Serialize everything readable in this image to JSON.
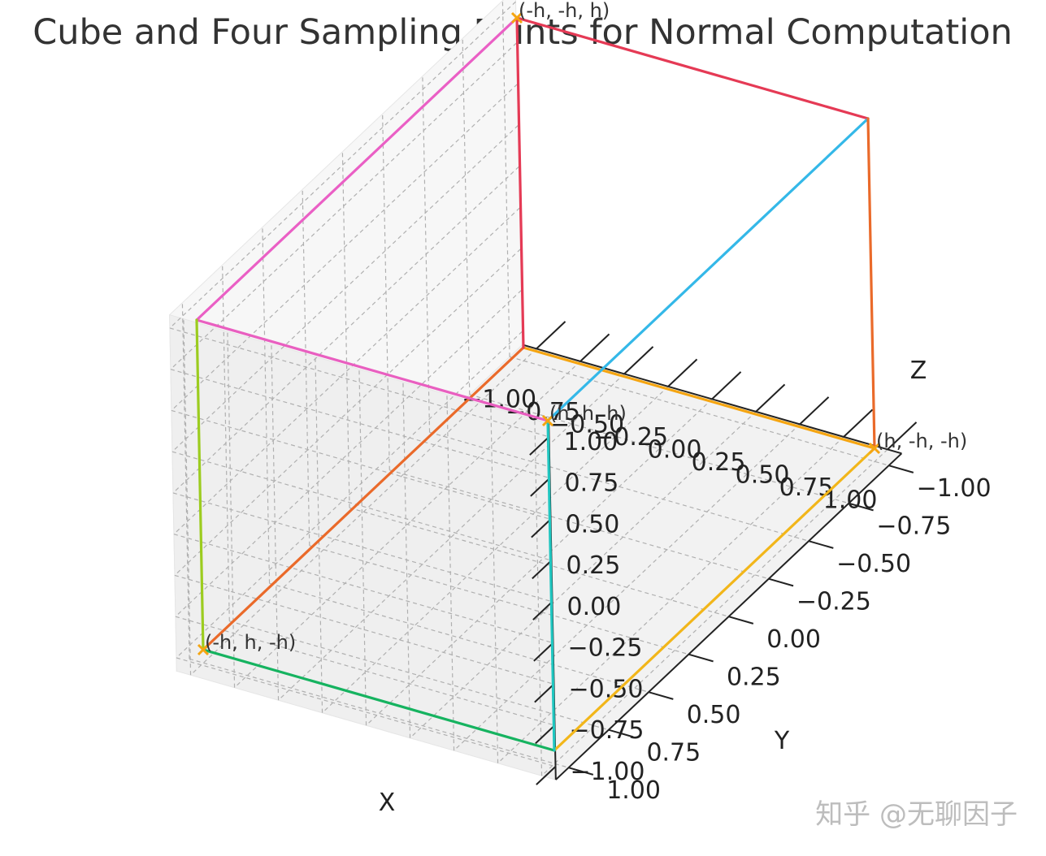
{
  "chart_data": {
    "type": "3d-line",
    "title": "Cube and Four Sampling Points for Normal Computation",
    "xlabel": "X",
    "ylabel": "Y",
    "zlabel": "Z",
    "xlim": [
      -1,
      1
    ],
    "ylim": [
      -1,
      1
    ],
    "zlim": [
      -1,
      1
    ],
    "ticks": [
      -1.0,
      -0.75,
      -0.5,
      -0.25,
      0.0,
      0.25,
      0.5,
      0.75,
      1.0
    ],
    "tick_labels": [
      "−1.00",
      "−0.75",
      "−0.50",
      "−0.25",
      "0.00",
      "0.25",
      "0.50",
      "0.75",
      "1.00"
    ],
    "grid": true,
    "edges": [
      {
        "from": [
          -1,
          -1,
          -1
        ],
        "to": [
          1,
          -1,
          -1
        ],
        "color": "#f5a511"
      },
      {
        "from": [
          1,
          -1,
          -1
        ],
        "to": [
          1,
          1,
          -1
        ],
        "color": "#f2b61a"
      },
      {
        "from": [
          1,
          1,
          -1
        ],
        "to": [
          -1,
          1,
          -1
        ],
        "color": "#16b360"
      },
      {
        "from": [
          -1,
          1,
          -1
        ],
        "to": [
          -1,
          -1,
          -1
        ],
        "color": "#ea6a2a"
      },
      {
        "from": [
          -1,
          -1,
          1
        ],
        "to": [
          1,
          -1,
          1
        ],
        "color": "#e53a55"
      },
      {
        "from": [
          1,
          -1,
          1
        ],
        "to": [
          1,
          1,
          1
        ],
        "color": "#34b8e8"
      },
      {
        "from": [
          1,
          1,
          1
        ],
        "to": [
          -1,
          1,
          1
        ],
        "color": "#e95fc0"
      },
      {
        "from": [
          -1,
          1,
          1
        ],
        "to": [
          -1,
          -1,
          1
        ],
        "color": "#ea5fc5"
      },
      {
        "from": [
          -1,
          -1,
          -1
        ],
        "to": [
          -1,
          -1,
          1
        ],
        "color": "#e53a55"
      },
      {
        "from": [
          1,
          -1,
          -1
        ],
        "to": [
          1,
          -1,
          1
        ],
        "color": "#ea6a2a"
      },
      {
        "from": [
          1,
          1,
          -1
        ],
        "to": [
          1,
          1,
          1
        ],
        "color": "#1fc6c0"
      },
      {
        "from": [
          -1,
          1,
          -1
        ],
        "to": [
          -1,
          1,
          1
        ],
        "color": "#9ccc1f"
      }
    ],
    "points": [
      {
        "coords": [
          1,
          -1,
          -1
        ],
        "label": "(h, -h, -h)"
      },
      {
        "coords": [
          -1,
          1,
          -1
        ],
        "label": "(-h, h, -h)"
      },
      {
        "coords": [
          -1,
          -1,
          1
        ],
        "label": "(-h, -h, h)"
      },
      {
        "coords": [
          1,
          1,
          1
        ],
        "label": "(h, h, h)"
      }
    ],
    "point_color": "#f5a511"
  },
  "watermark": "知乎 @无聊因子"
}
